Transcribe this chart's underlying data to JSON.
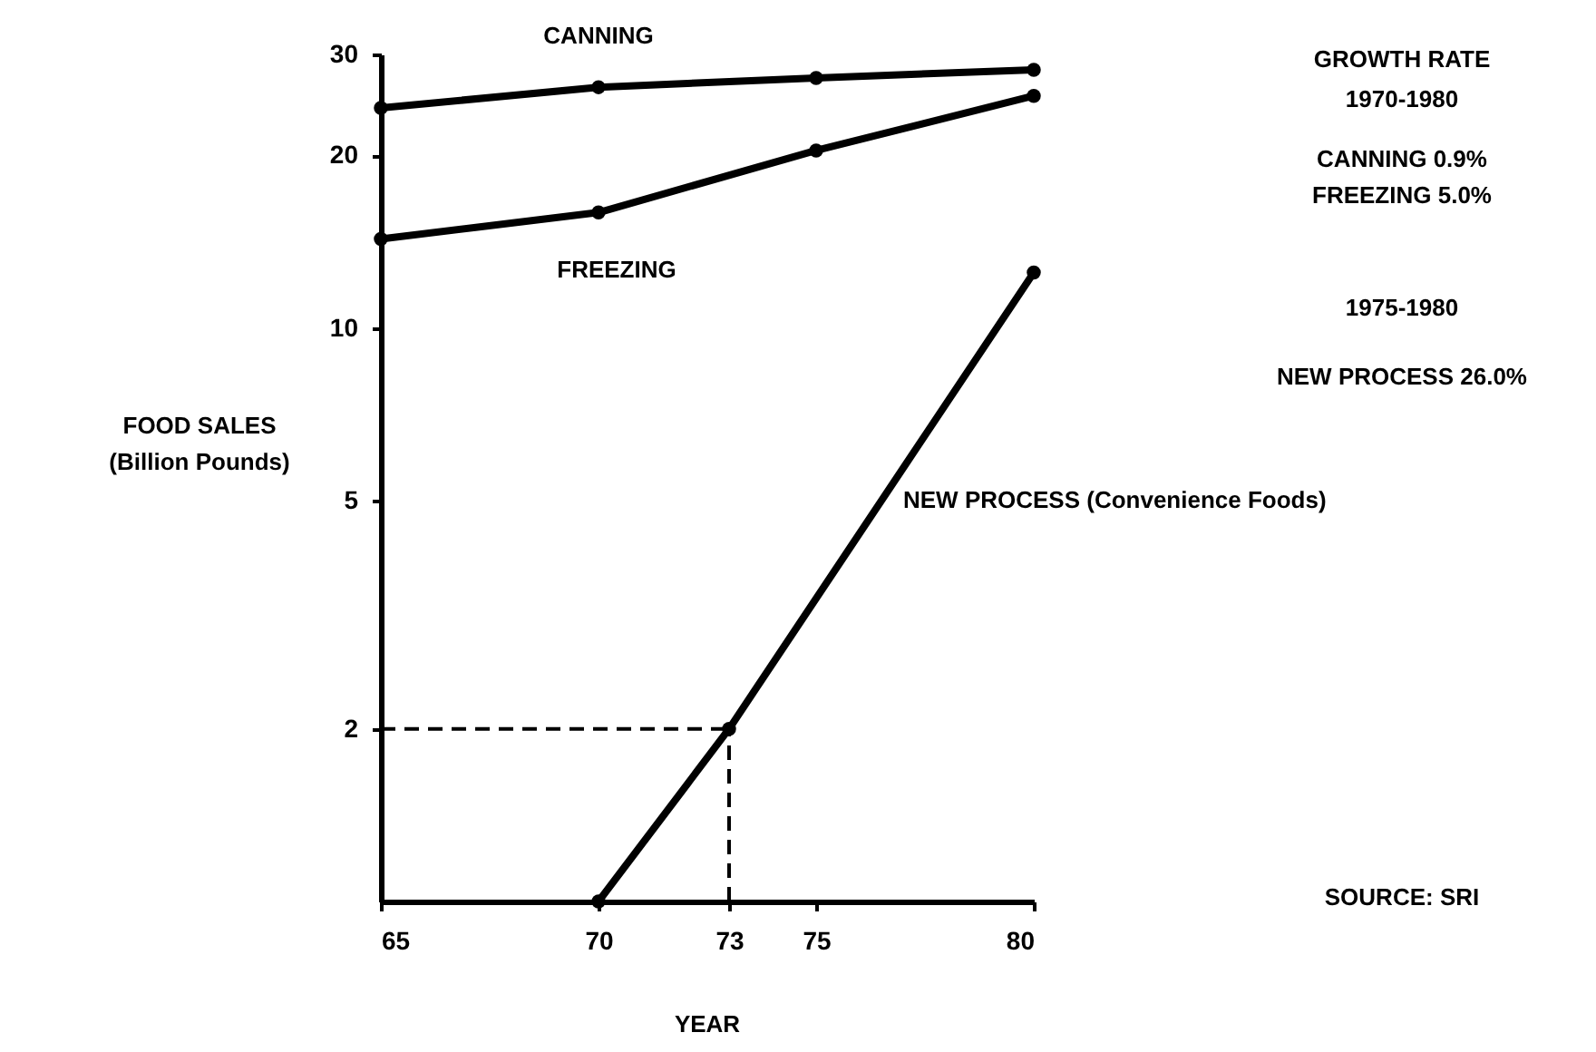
{
  "chart_data": {
    "type": "line",
    "x": [
      65,
      70,
      75,
      80
    ],
    "series": [
      {
        "name": "CANNING",
        "color": "#000000",
        "values": [
          24.2,
          26.3,
          27.3,
          28.2
        ]
      },
      {
        "name": "FREEZING",
        "color": "#000000",
        "values": [
          14.3,
          15.9,
          20.4,
          25.4
        ]
      },
      {
        "name": "NEW PROCESS (Convenience Foods)",
        "color": "#000000",
        "x": [
          70,
          73,
          80
        ],
        "values": [
          1,
          2,
          12.5
        ]
      }
    ],
    "xlabel": "YEAR",
    "ylabel": "FOOD SALES\n(Billion Pounds)",
    "xlim": [
      65,
      80
    ],
    "xticks": [
      65,
      70,
      73,
      75,
      80
    ],
    "ylim": [
      1,
      30
    ],
    "yticks": [
      2,
      5,
      10,
      20,
      30
    ],
    "log": "y",
    "grid": false,
    "legend": false,
    "marker": "circle",
    "line_style": "solid",
    "ref_lines": [
      {
        "axis": "y",
        "value": 2,
        "line_style": "dashed",
        "color": "#000000"
      },
      {
        "axis": "x",
        "value": 73,
        "line_style": "dashed",
        "color": "#000000"
      }
    ],
    "annotations": [
      "GROWTH RATE",
      "1970-1980",
      "CANNING   0.9%",
      "FREEZING   5.0%",
      "1975-1980",
      "NEW PROCESS  26.0%",
      "SOURCE: SRI"
    ]
  }
}
